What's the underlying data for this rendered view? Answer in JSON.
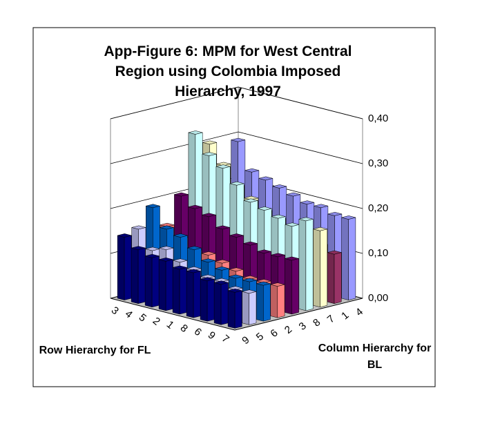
{
  "chart_data": {
    "type": "bar3d",
    "title": "App-Figure 6: MPM for West Central Region using Colombia Imposed Hierarchy, 1997",
    "xlabel": "Row Hierarchy for FL",
    "ylabel": "Column Hierarchy for BL",
    "categories": [
      "3",
      "4",
      "5",
      "2",
      "1",
      "8",
      "6",
      "9",
      "7"
    ],
    "series": [
      {
        "name": "9",
        "color": "#000080",
        "values": [
          0.14,
          0.12,
          0.11,
          0.11,
          0.1,
          0.1,
          0.09,
          0.09,
          0.08
        ]
      },
      {
        "name": "5",
        "color": "#ccccff",
        "values": [
          0.15,
          0.11,
          0.12,
          0.1,
          0.09,
          0.08,
          0.08,
          0.07,
          0.07
        ]
      },
      {
        "name": "6",
        "color": "#0066cc",
        "values": [
          0.19,
          0.15,
          0.14,
          0.12,
          0.1,
          0.09,
          0.08,
          0.08,
          0.08
        ]
      },
      {
        "name": "2",
        "color": "#ff8080",
        "values": [
          0.14,
          0.12,
          0.1,
          0.1,
          0.09,
          0.08,
          0.07,
          0.07,
          0.07
        ]
      },
      {
        "name": "3",
        "color": "#660066",
        "values": [
          0.2,
          0.18,
          0.17,
          0.15,
          0.14,
          0.13,
          0.12,
          0.12,
          0.12
        ]
      },
      {
        "name": "8",
        "color": "#ccffff",
        "values": [
          0.33,
          0.29,
          0.27,
          0.24,
          0.21,
          0.2,
          0.19,
          0.18,
          0.2
        ]
      },
      {
        "name": "7",
        "color": "#ffffcc",
        "values": [
          0.3,
          0.26,
          0.22,
          0.2,
          0.18,
          0.17,
          0.16,
          0.15,
          0.17
        ]
      },
      {
        "name": "1",
        "color": "#993366",
        "values": [
          0.18,
          0.16,
          0.15,
          0.14,
          0.14,
          0.13,
          0.12,
          0.12,
          0.11
        ]
      },
      {
        "name": "4",
        "color": "#9999ff",
        "values": [
          0.29,
          0.23,
          0.22,
          0.21,
          0.2,
          0.19,
          0.19,
          0.18,
          0.18
        ]
      }
    ],
    "zlim": [
      0,
      0.4
    ],
    "zticks": [
      {
        "value": 0,
        "label": "0,00"
      },
      {
        "value": 0.1,
        "label": "0,10"
      },
      {
        "value": 0.2,
        "label": "0,20"
      },
      {
        "value": 0.3,
        "label": "0,30"
      },
      {
        "value": 0.4,
        "label": "0,40"
      }
    ],
    "grid": true
  }
}
